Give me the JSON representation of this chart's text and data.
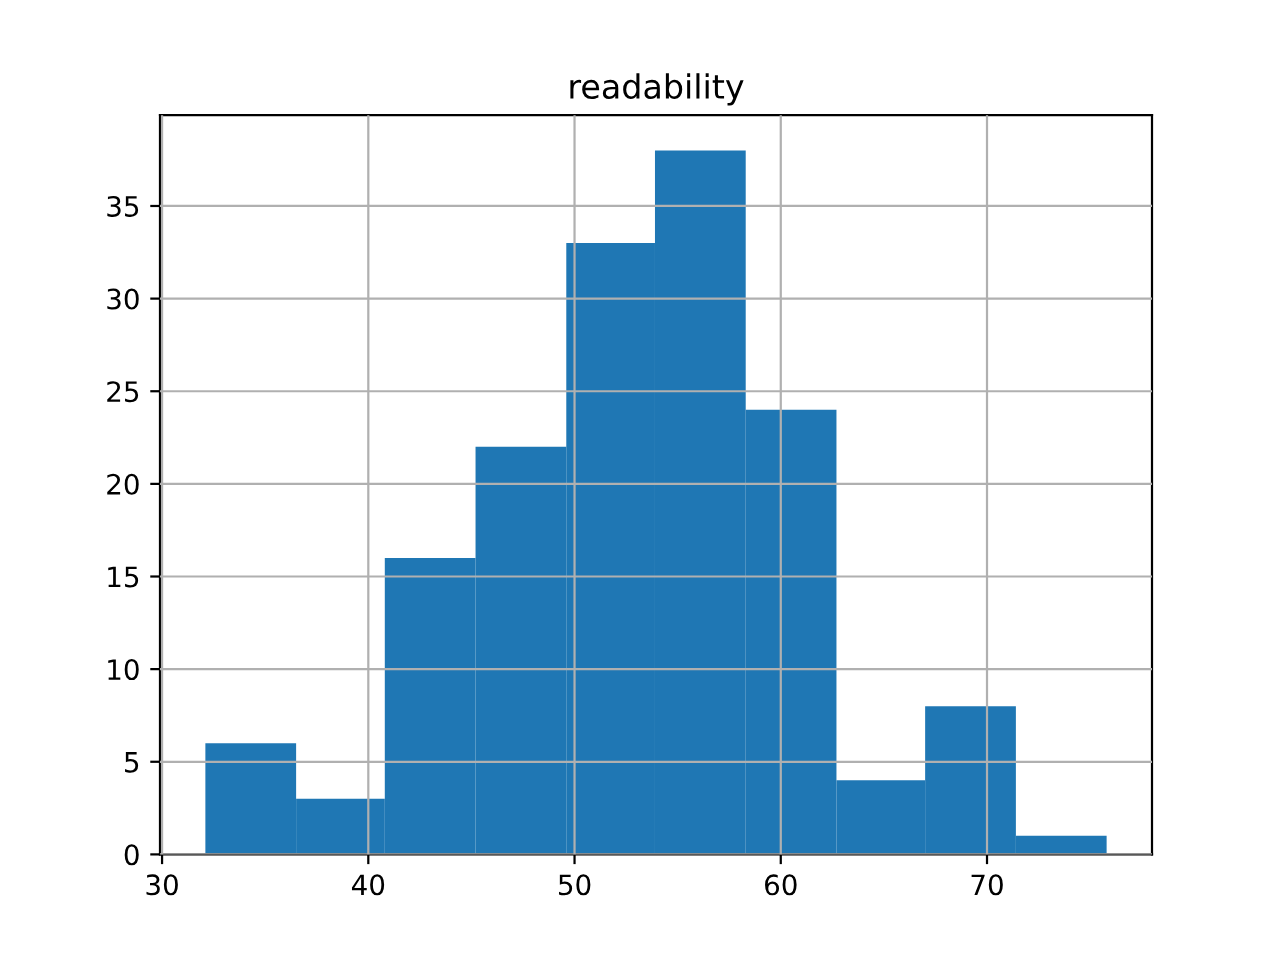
{
  "chart_data": {
    "type": "histogram",
    "title": "readability",
    "bins": [
      32.1,
      36.5,
      40.8,
      45.2,
      49.6,
      53.9,
      58.3,
      62.7,
      67.0,
      71.4,
      75.8
    ],
    "values": [
      6,
      3,
      16,
      22,
      33,
      38,
      24,
      4,
      8,
      1
    ],
    "color": "#1f77b4",
    "xlim": [
      29.9,
      78.0
    ],
    "xticks": [
      30,
      40,
      50,
      60,
      70
    ],
    "ylim": [
      0,
      39.9
    ],
    "yticks": [
      0,
      5,
      10,
      15,
      20,
      25,
      30,
      35
    ],
    "grid": true
  }
}
